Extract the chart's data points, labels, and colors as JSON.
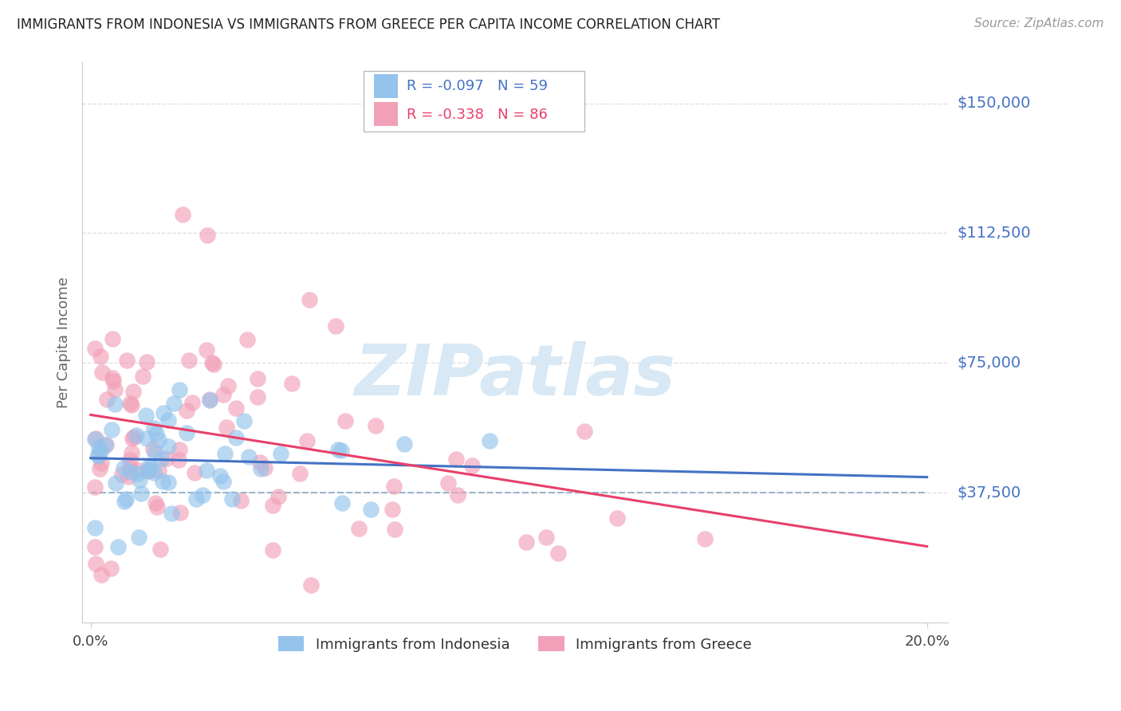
{
  "title": "IMMIGRANTS FROM INDONESIA VS IMMIGRANTS FROM GREECE PER CAPITA INCOME CORRELATION CHART",
  "source": "Source: ZipAtlas.com",
  "ylabel": "Per Capita Income",
  "xtick_labels": [
    "0.0%",
    "20.0%"
  ],
  "xtick_vals": [
    0.0,
    0.2
  ],
  "ytick_vals": [
    37500,
    75000,
    112500,
    150000
  ],
  "ytick_labels": [
    "$37,500",
    "$75,000",
    "$112,500",
    "$150,000"
  ],
  "ylim": [
    0,
    162000
  ],
  "xlim": [
    -0.002,
    0.205
  ],
  "indonesia_color": "#94C3EC",
  "greece_color": "#F2A0B8",
  "indonesia_line_color": "#4472C4",
  "greece_line_color": "#E8406A",
  "axis_label_color": "#4472C4",
  "title_color": "#222222",
  "source_color": "#999999",
  "background_color": "#FFFFFF",
  "grid_color": "#DDDDDD",
  "hline_color": "#88AACC",
  "watermark_color": "#D8E8F4",
  "legend_R1": "R = -0.097   N = 59",
  "legend_R2": "R = -0.338   N = 86",
  "legend_label1": "Immigrants from Indonesia",
  "legend_label2": "Immigrants from Greece",
  "indonesia_R": -0.097,
  "indonesia_N": 59,
  "greece_R": -0.338,
  "greece_N": 86
}
